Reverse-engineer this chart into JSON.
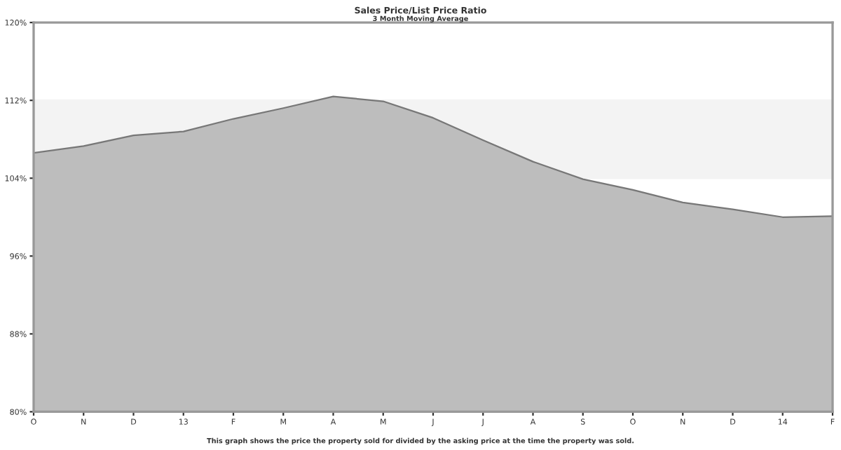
{
  "chart_data": {
    "type": "area",
    "title": "Sales Price/List Price Ratio",
    "subtitle": "3 Month Moving Average",
    "categories": [
      "O",
      "N",
      "D",
      "13",
      "F",
      "M",
      "A",
      "M",
      "J",
      "J",
      "A",
      "S",
      "O",
      "N",
      "D",
      "14",
      "F"
    ],
    "series": [
      {
        "color": "#bdbdbd",
        "values": [
          106.6,
          107.3,
          108.4,
          108.8,
          110.1,
          111.2,
          112.4,
          111.9,
          110.2,
          107.9,
          105.7,
          103.9,
          102.8,
          101.5,
          100.8,
          100.0,
          100.1
        ]
      }
    ],
    "ylim": [
      80,
      120
    ],
    "yticks": [
      {
        "value": 80,
        "label": "80%"
      },
      {
        "value": 88,
        "label": "88%"
      },
      {
        "value": 96,
        "label": "96%"
      },
      {
        "value": 104,
        "label": "104%"
      },
      {
        "value": 112,
        "label": "112%"
      },
      {
        "value": 120,
        "label": "120%"
      }
    ],
    "bands": [
      {
        "axis": "y",
        "from": 104,
        "to": 112,
        "color": "#f3f3f3"
      }
    ],
    "grid": false,
    "legend": false,
    "annotations": [
      "This graph shows the price the property sold for divided by the asking price at the time the property was sold."
    ]
  }
}
